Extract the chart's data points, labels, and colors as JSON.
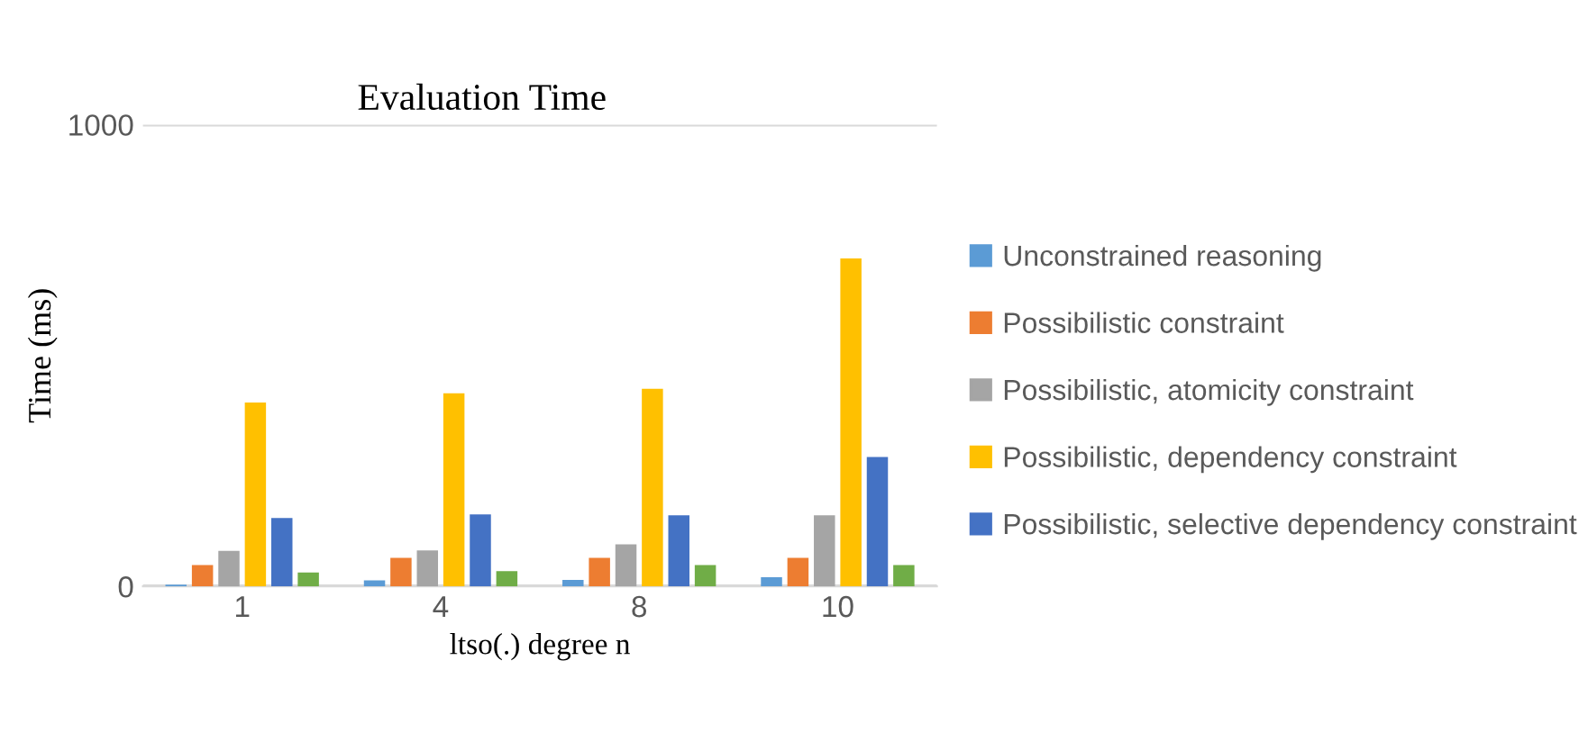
{
  "chart_data": {
    "type": "bar",
    "title": "Evaluation Time",
    "xlabel": "ltso(.) degree n",
    "ylabel": "Time (ms)",
    "categories": [
      "1",
      "4",
      "8",
      "10"
    ],
    "series": [
      {
        "name": "Unconstrained reasoning",
        "color": "#5b9bd5",
        "values": [
          4,
          13,
          14,
          20
        ]
      },
      {
        "name": "Possibilistic constraint",
        "color": "#ed7d31",
        "values": [
          46,
          62,
          62,
          62
        ]
      },
      {
        "name": "Possibilistic, atomicity constraint",
        "color": "#a5a5a5",
        "values": [
          77,
          78,
          91,
          154
        ]
      },
      {
        "name": "Possibilistic, dependency constraint",
        "color": "#ffc000",
        "values": [
          398,
          418,
          428,
          710
        ]
      },
      {
        "name": "Possibilistic, selective dependency constraint",
        "color": "#4472c4",
        "values": [
          148,
          156,
          154,
          280
        ]
      },
      {
        "color": "#70ad47",
        "values": [
          30,
          33,
          46,
          46
        ]
      }
    ],
    "ylim": [
      0,
      1000
    ],
    "yticks": [
      0,
      1000
    ],
    "grid": "y",
    "legend": "right"
  }
}
